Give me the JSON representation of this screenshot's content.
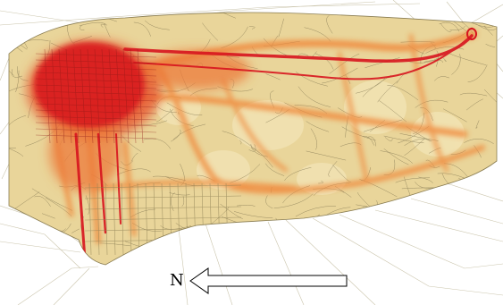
{
  "map": {
    "north_label": "N",
    "palette": {
      "background": "#ffffff",
      "land": "#e9d59a",
      "land_light": "#f1e2b0",
      "track": "#b7aa78",
      "track_dark": "#7f7450",
      "warm": "#f08a3c",
      "hot": "#e2452c",
      "core": "#d8141e"
    },
    "layers": [
      "gps-traces",
      "density-heatmap",
      "street-grid"
    ],
    "north_arrow_direction": "left"
  }
}
